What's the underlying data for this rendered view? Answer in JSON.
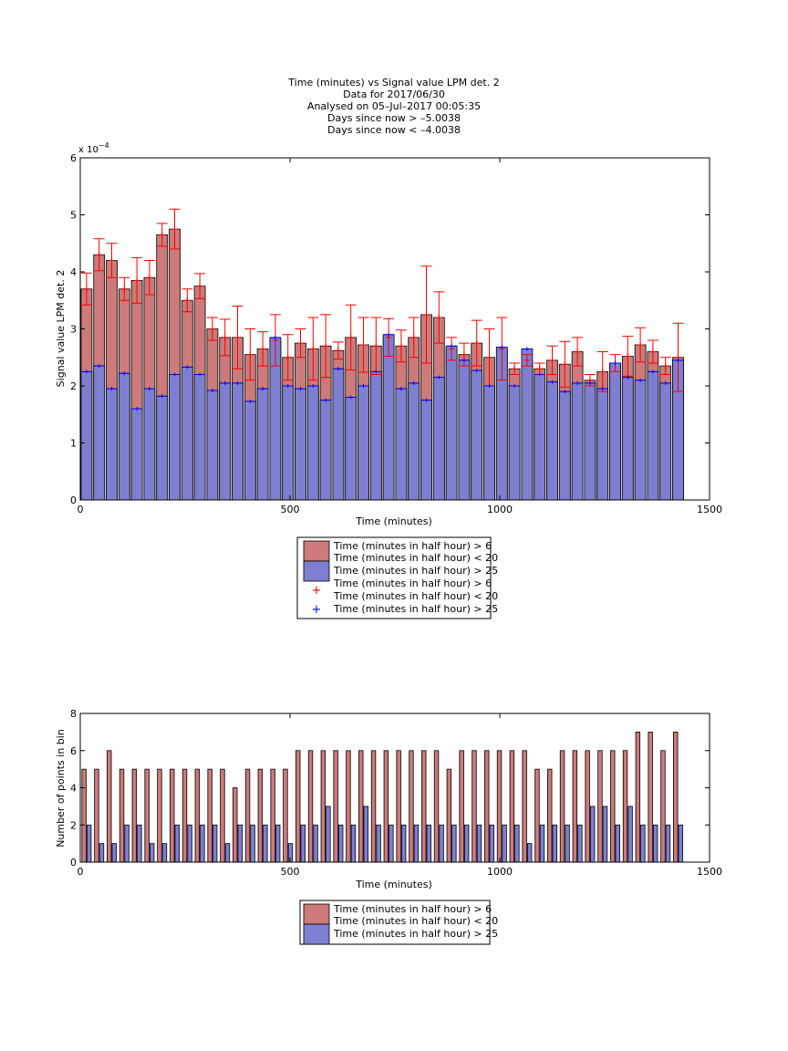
{
  "figure": {
    "title_lines": [
      "Time (minutes) vs Signal value LPM det. 2",
      "Data for 2017/06/30",
      "Analysed on 05–Jul–2017 00:05:35",
      "Days since now > –5.0038",
      "Days since now < –4.0038"
    ]
  },
  "legend1": {
    "entries": [
      "Time (minutes in half hour) > 6",
      "Time (minutes in half hour) < 20",
      "Time (minutes in half hour) > 25",
      "Time (minutes in half hour) > 6",
      "Time (minutes in half hour) < 20",
      "Time (minutes in half hour) > 25"
    ]
  },
  "legend2": {
    "entries": [
      "Time (minutes in half hour) > 6",
      "Time (minutes in half hour) < 20",
      "Time (minutes in half hour) > 25"
    ]
  },
  "colors": {
    "red_bar": "#cc7a7a",
    "blue_bar": "#7f7fd1",
    "red_err": "#ff0000",
    "blue_err": "#0000ff"
  },
  "chart_data": [
    {
      "type": "bar",
      "xlabel": "Time (minutes)",
      "ylabel": "Signal value LPM det. 2",
      "exponent_label": "x 10",
      "exponent_power": "−4",
      "xlim": [
        0,
        1500
      ],
      "ylim": [
        0,
        6
      ],
      "xticks": [
        0,
        500,
        1000,
        1500
      ],
      "yticks": [
        0,
        1,
        2,
        3,
        4,
        5,
        6
      ],
      "grid": false,
      "legend_position": "below",
      "x": [
        15,
        45,
        75,
        105,
        135,
        165,
        195,
        225,
        255,
        285,
        315,
        345,
        375,
        405,
        435,
        465,
        495,
        525,
        555,
        585,
        615,
        645,
        675,
        705,
        735,
        765,
        795,
        825,
        855,
        885,
        915,
        945,
        975,
        1005,
        1035,
        1065,
        1095,
        1125,
        1155,
        1185,
        1215,
        1245,
        1275,
        1305,
        1335,
        1365,
        1395,
        1425
      ],
      "series": [
        {
          "values": [
            3.7,
            4.3,
            4.2,
            3.7,
            3.85,
            3.9,
            4.65,
            4.75,
            3.5,
            3.75,
            3.0,
            2.85,
            2.85,
            2.55,
            2.65,
            2.8,
            2.5,
            2.75,
            2.65,
            2.7,
            2.62,
            2.85,
            2.72,
            2.7,
            2.85,
            2.7,
            2.85,
            3.25,
            3.2,
            2.65,
            2.55,
            2.75,
            2.5,
            2.65,
            2.3,
            2.45,
            2.3,
            2.45,
            2.38,
            2.6,
            2.1,
            2.25,
            2.4,
            2.52,
            2.72,
            2.6,
            2.35,
            2.5
          ],
          "error": [
            0.28,
            0.28,
            0.3,
            0.2,
            0.4,
            0.3,
            0.2,
            0.35,
            0.2,
            0.22,
            0.2,
            0.32,
            0.55,
            0.45,
            0.3,
            0.45,
            0.4,
            0.25,
            0.55,
            0.55,
            0.15,
            0.57,
            0.48,
            0.5,
            0.33,
            0.28,
            0.35,
            0.85,
            0.45,
            0.2,
            0.2,
            0.4,
            0.5,
            0.55,
            0.1,
            0.1,
            0.1,
            0.25,
            0.4,
            0.25,
            0.1,
            0.35,
            0.15,
            0.35,
            0.3,
            0.2,
            0.15,
            0.6
          ]
        },
        {
          "values": [
            2.25,
            2.35,
            1.95,
            2.22,
            1.6,
            1.95,
            1.82,
            2.2,
            2.33,
            2.2,
            1.92,
            2.05,
            2.05,
            1.73,
            1.95,
            2.85,
            2.0,
            1.95,
            2.0,
            1.75,
            2.3,
            1.8,
            2.0,
            2.25,
            2.9,
            1.95,
            2.05,
            1.75,
            2.15,
            2.7,
            2.45,
            2.27,
            2.0,
            2.68,
            2.0,
            2.65,
            2.2,
            2.07,
            1.9,
            2.05,
            2.05,
            1.95,
            2.4,
            2.15,
            2.1,
            2.25,
            2.05,
            2.45
          ]
        }
      ]
    },
    {
      "type": "bar",
      "xlabel": "Time (minutes)",
      "ylabel": "Number of points in bin",
      "xlim": [
        0,
        1500
      ],
      "ylim": [
        0,
        8
      ],
      "xticks": [
        0,
        500,
        1000,
        1500
      ],
      "yticks": [
        0,
        2,
        4,
        6,
        8
      ],
      "grid": false,
      "legend_position": "below",
      "x": [
        15,
        45,
        75,
        105,
        135,
        165,
        195,
        225,
        255,
        285,
        315,
        345,
        375,
        405,
        435,
        465,
        495,
        525,
        555,
        585,
        615,
        645,
        675,
        705,
        735,
        765,
        795,
        825,
        855,
        885,
        915,
        945,
        975,
        1005,
        1035,
        1065,
        1095,
        1125,
        1155,
        1185,
        1215,
        1245,
        1275,
        1305,
        1335,
        1365,
        1395,
        1425
      ],
      "series": [
        {
          "values": [
            5,
            5,
            6,
            5,
            5,
            5,
            5,
            5,
            5,
            5,
            5,
            5,
            4,
            5,
            5,
            5,
            5,
            6,
            6,
            6,
            6,
            6,
            6,
            6,
            6,
            6,
            6,
            6,
            6,
            5,
            6,
            6,
            6,
            6,
            6,
            6,
            5,
            5,
            6,
            6,
            6,
            6,
            6,
            6,
            7,
            7,
            6,
            7
          ]
        },
        {
          "values": [
            2,
            1,
            1,
            2,
            2,
            1,
            1,
            2,
            2,
            2,
            2,
            1,
            2,
            2,
            2,
            2,
            1,
            2,
            2,
            3,
            2,
            2,
            3,
            2,
            2,
            2,
            2,
            2,
            2,
            2,
            2,
            2,
            2,
            2,
            2,
            1,
            2,
            2,
            2,
            2,
            3,
            3,
            2,
            3,
            2,
            2,
            2,
            2
          ]
        }
      ]
    }
  ]
}
